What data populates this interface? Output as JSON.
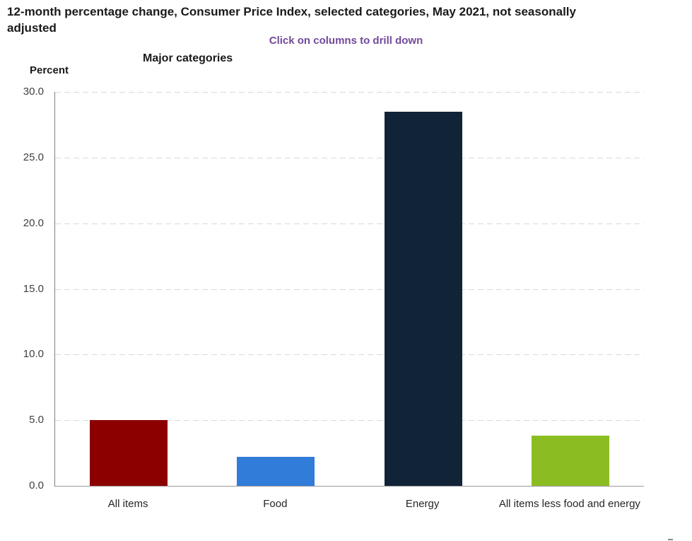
{
  "header": {
    "title": "12-month percentage change, Consumer Price Index, selected categories, May 2021, not seasonally adjusted",
    "subtitle": "Click on columns to drill down",
    "group_label": "Major categories",
    "y_axis_title": "Percent"
  },
  "colors": {
    "title_text": "#1a1a1a",
    "subtitle_text": "#72499b",
    "gridline": "#d9d9d9",
    "y_axis_line": "#7f7f7f",
    "x_axis_line": "#999999",
    "bar_all_items": "#8c0000",
    "bar_food": "#307cd8",
    "bar_energy": "#112337",
    "bar_core": "#8bbd22"
  },
  "chart_data": {
    "type": "bar",
    "title": "12-month percentage change, Consumer Price Index, selected categories, May 2021, not seasonally adjusted",
    "subtitle": "Click on columns to drill down",
    "categories": [
      "All items",
      "Food",
      "Energy",
      "All items less food and energy"
    ],
    "values": [
      5.0,
      2.2,
      28.5,
      3.8
    ],
    "bar_colors": [
      "#8c0000",
      "#307cd8",
      "#112337",
      "#8bbd22"
    ],
    "xlabel": "Major categories",
    "ylabel": "Percent",
    "ylim": [
      0,
      30
    ],
    "ytick_interval": 5,
    "ytick_labels": [
      "30.0",
      "25.0",
      "20.0",
      "15.0",
      "10.0",
      "5.0",
      "0.0"
    ],
    "grid": "horizontal-dashed",
    "legend": "none"
  }
}
